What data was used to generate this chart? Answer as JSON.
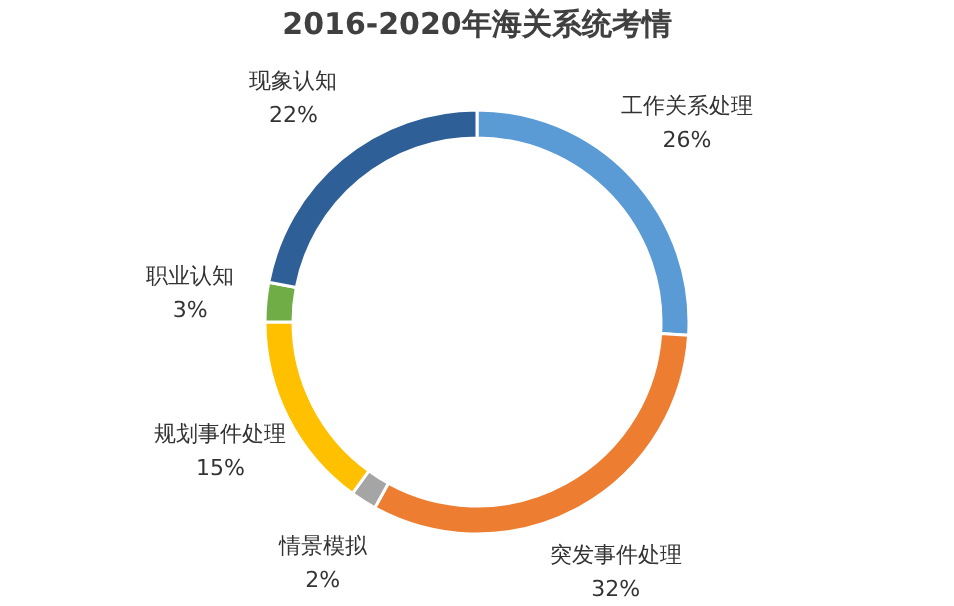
{
  "chart_data": {
    "type": "donut",
    "title": "2016-2020年海关系统考情",
    "categories": [
      "工作关系处理",
      "突发事件处理",
      "情景模拟",
      "规划事件处理",
      "职业认知",
      "现象认知"
    ],
    "values": [
      26,
      32,
      2,
      15,
      3,
      22
    ],
    "colors": [
      "#5b9bd5",
      "#ed7d31",
      "#a5a5a5",
      "#ffc000",
      "#70ad47",
      "#2f5f97"
    ],
    "value_labels": [
      "26%",
      "32%",
      "2%",
      "15%",
      "3%",
      "22%"
    ],
    "legend": false
  }
}
